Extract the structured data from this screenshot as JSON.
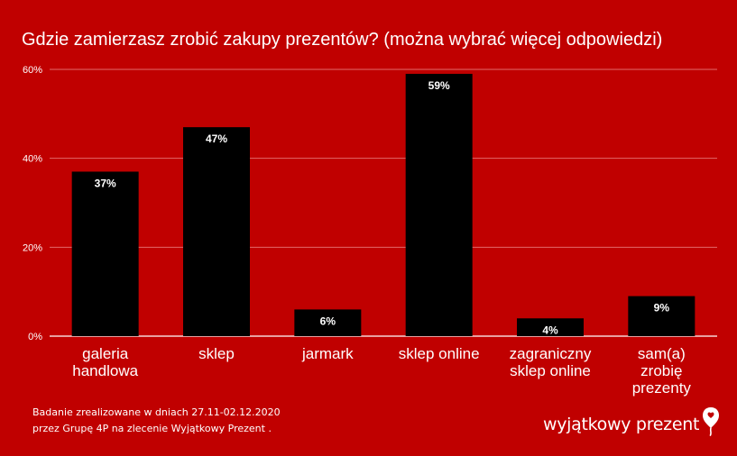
{
  "chart_data": {
    "type": "bar",
    "title": "Gdzie zamierzasz zrobić zakupy prezentów? (można wybrać więcej odpowiedzi)",
    "categories": [
      [
        "galeria",
        "handlowa"
      ],
      [
        "sklep"
      ],
      [
        "jarmark"
      ],
      [
        "sklep online"
      ],
      [
        "zagraniczny",
        "sklep online"
      ],
      [
        "sam(a)",
        "zrobię",
        "prezenty"
      ]
    ],
    "values": [
      37,
      47,
      6,
      59,
      4,
      9
    ],
    "data_labels": [
      "37%",
      "47%",
      "6%",
      "59%",
      "4%",
      "9%"
    ],
    "y_ticks": [
      0,
      20,
      40,
      60
    ],
    "y_tick_labels": [
      "0%",
      "20%",
      "40%",
      "60%"
    ],
    "ylim": [
      0,
      60
    ],
    "grid": true,
    "legend": "none",
    "colors": {
      "background": "#c00000",
      "bar": "#000000",
      "text": "#ffffff",
      "grid": "#e26a6a"
    }
  },
  "footnote": {
    "line1": "Badanie zrealizowane w dniach 27.11-02.12.2020",
    "line2": "przez Grupę 4P na zlecenie Wyjątkowy Prezent ."
  },
  "logo": {
    "text": "wyjątkowy prezent",
    "icon": "balloon-heart-icon"
  }
}
